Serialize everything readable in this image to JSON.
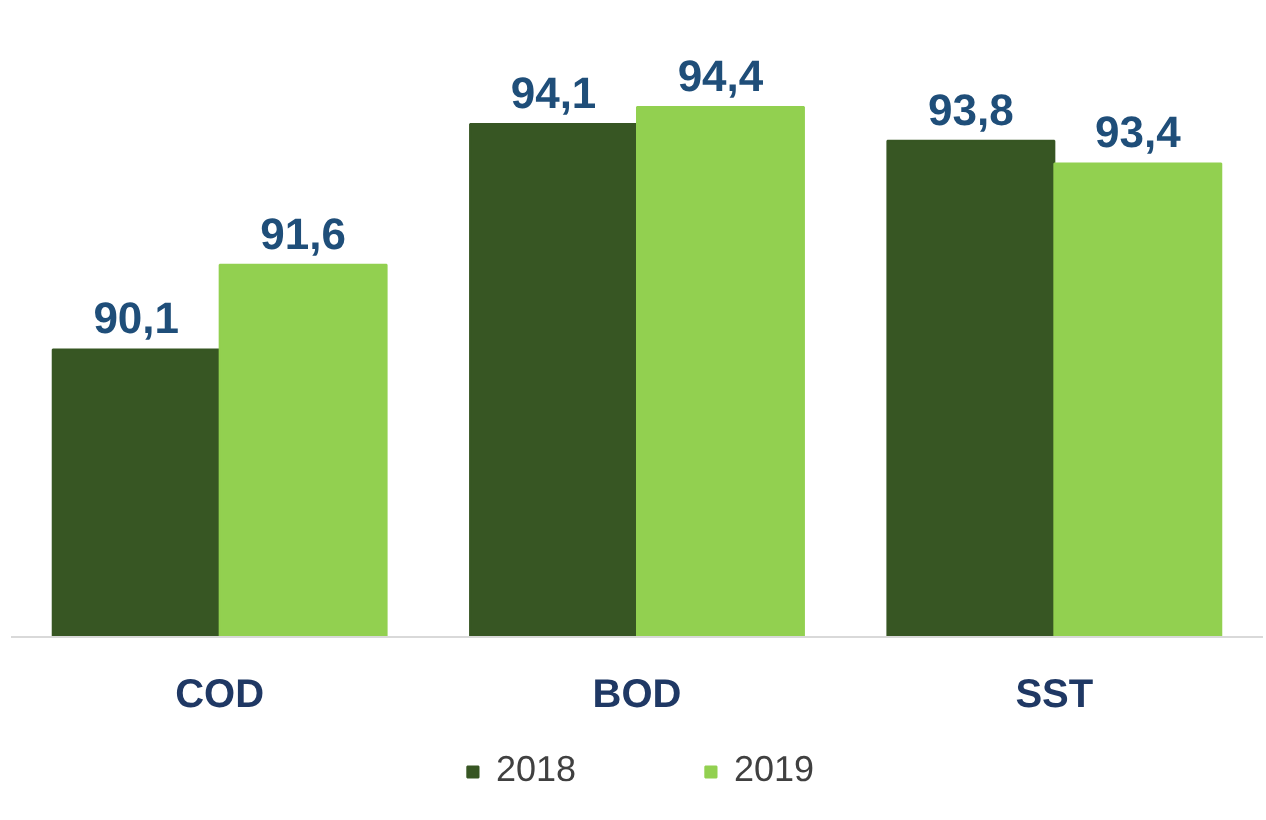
{
  "chart_data": {
    "type": "bar",
    "categories": [
      "COD",
      "BOD",
      "SST"
    ],
    "series": [
      {
        "name": "2018",
        "color": "#375623",
        "values": [
          90.1,
          94.1,
          93.8
        ],
        "value_labels": [
          "90,1",
          "94,1",
          "93,8"
        ]
      },
      {
        "name": "2019",
        "color": "#92d050",
        "values": [
          91.6,
          94.4,
          93.4
        ],
        "value_labels": [
          "91,6",
          "94,4",
          "93,4"
        ]
      }
    ],
    "ylim": [
      85,
      94.4
    ],
    "tick_labels": "x",
    "grid": false,
    "legend": "bottom"
  }
}
